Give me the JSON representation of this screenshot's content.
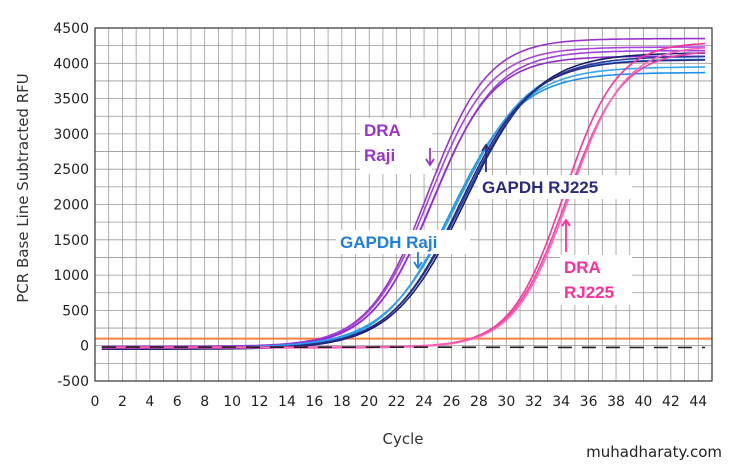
{
  "chart_data": {
    "type": "line",
    "xlabel": "Cycle",
    "ylabel": "PCR Base Line Subtracted RFU",
    "xlim": [
      0,
      45
    ],
    "ylim": [
      -500,
      4500
    ],
    "x_ticks": [
      0,
      2,
      4,
      6,
      8,
      10,
      12,
      14,
      16,
      18,
      20,
      22,
      24,
      26,
      28,
      30,
      32,
      34,
      36,
      38,
      40,
      42,
      44
    ],
    "y_ticks": [
      -500,
      0,
      500,
      1000,
      1500,
      2000,
      2500,
      3000,
      3500,
      4000,
      4500
    ],
    "grid": true,
    "threshold": {
      "value": 100,
      "color": "#ff8040"
    },
    "series": [
      {
        "group": "dra-raji",
        "color": "#9933cc",
        "x_range": [
          0.5,
          44.5
        ],
        "baseline": -10,
        "plateau": 4350,
        "midpoint": 24.3,
        "slope": 0.46
      },
      {
        "group": "dra-raji",
        "color": "#aa44dd",
        "x_range": [
          0.5,
          44.5
        ],
        "baseline": -20,
        "plateau": 4230,
        "midpoint": 24.4,
        "slope": 0.45
      },
      {
        "group": "dra-raji",
        "color": "#a040e0",
        "x_range": [
          0.5,
          44.5
        ],
        "baseline": -30,
        "plateau": 4180,
        "midpoint": 24.7,
        "slope": 0.44
      },
      {
        "group": "dra-raji",
        "color": "#8e2ed0",
        "x_range": [
          0.5,
          44.5
        ],
        "baseline": -15,
        "plateau": 4100,
        "midpoint": 24.6,
        "slope": 0.45
      },
      {
        "group": "gapdh-raji",
        "color": "#1e90e6",
        "x_range": [
          0.5,
          44.5
        ],
        "baseline": -40,
        "plateau": 3870,
        "midpoint": 26.0,
        "slope": 0.4
      },
      {
        "group": "gapdh-raji",
        "color": "#33aaee",
        "x_range": [
          0.5,
          44.5
        ],
        "baseline": -30,
        "plateau": 3950,
        "midpoint": 26.2,
        "slope": 0.39
      },
      {
        "group": "gapdh-raji",
        "color": "#2a9ff0",
        "x_range": [
          0.5,
          44.5
        ],
        "baseline": -25,
        "plateau": 4060,
        "midpoint": 26.4,
        "slope": 0.38
      },
      {
        "group": "gapdh-rj225",
        "color": "#1a1f6e",
        "x_range": [
          0.5,
          44.5
        ],
        "baseline": -50,
        "plateau": 4150,
        "midpoint": 27.0,
        "slope": 0.38
      },
      {
        "group": "gapdh-rj225",
        "color": "#2b3a9a",
        "x_range": [
          0.5,
          44.5
        ],
        "baseline": -40,
        "plateau": 4100,
        "midpoint": 26.8,
        "slope": 0.38
      },
      {
        "group": "gapdh-rj225",
        "color": "#2a2a80",
        "x_range": [
          0.5,
          44.5
        ],
        "baseline": -45,
        "plateau": 4050,
        "midpoint": 26.6,
        "slope": 0.39
      },
      {
        "group": "dra-rj225",
        "color": "#ff3399",
        "x_range": [
          0.5,
          44.5
        ],
        "baseline": -20,
        "plateau": 4300,
        "midpoint": 34.2,
        "slope": 0.52
      },
      {
        "group": "dra-rj225",
        "color": "#ee44aa",
        "x_range": [
          0.5,
          44.5
        ],
        "baseline": -30,
        "plateau": 4180,
        "midpoint": 34.4,
        "slope": 0.5
      },
      {
        "group": "dra-rj225",
        "color": "#ff66bb",
        "x_range": [
          0.5,
          44.5
        ],
        "baseline": -25,
        "plateau": 4250,
        "midpoint": 34.6,
        "slope": 0.5
      },
      {
        "group": "negative-control",
        "color": "#222222",
        "x_range": [
          0.5,
          44.5
        ],
        "baseline": -20,
        "plateau": -30,
        "midpoint": 40.0,
        "slope": 0.1
      }
    ],
    "annotations": [
      {
        "id": "dra-raji",
        "lines": [
          "DRA",
          "Raji"
        ],
        "color": "#9933cc",
        "arrow": [
          24.6,
          2800
        ]
      },
      {
        "id": "gapdh-rj225",
        "lines": [
          "GAPDH RJ225"
        ],
        "color": "#2b2b7a",
        "arrow": [
          28.2,
          2900
        ]
      },
      {
        "id": "gapdh-raji",
        "lines": [
          "GAPDH Raji"
        ],
        "color": "#1e7fe0",
        "arrow": [
          23.3,
          1150
        ]
      },
      {
        "id": "dra-rj225",
        "lines": [
          "DRA",
          "RJ225"
        ],
        "color": "#ff2d9a",
        "arrow": [
          34.0,
          1750
        ]
      }
    ]
  },
  "watermark": "muhadharaty.com",
  "colors": {
    "grid": "#9a9a9a",
    "axis": "#333333",
    "tick_text": "#222222"
  }
}
